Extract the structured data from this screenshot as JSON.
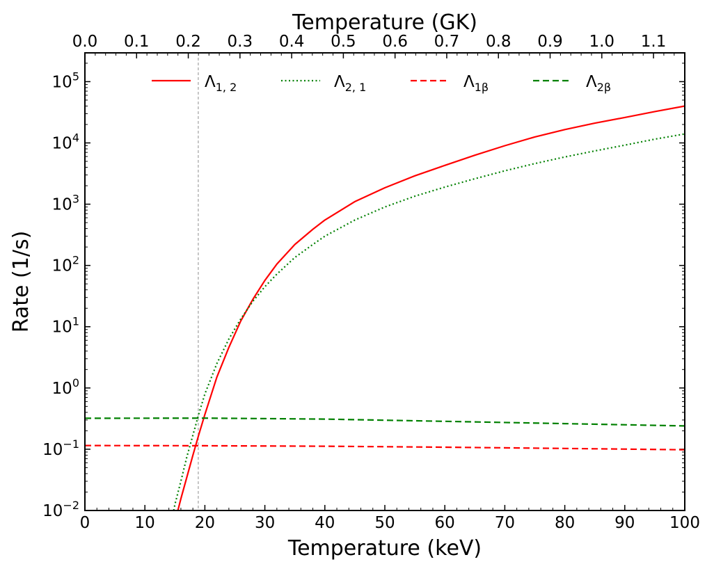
{
  "chart_data": {
    "type": "line",
    "title": "",
    "xlabel": "Temperature (keV)",
    "xlabel_top": "Temperature (GK)",
    "ylabel": "Rate (1/s)",
    "xlim": [
      0,
      100
    ],
    "ylim_log10": [
      -2,
      5.47
    ],
    "yscale": "log",
    "x_ticks": [
      0,
      10,
      20,
      30,
      40,
      50,
      60,
      70,
      80,
      90,
      100
    ],
    "x_tick_labels": [
      "0",
      "10",
      "20",
      "30",
      "40",
      "50",
      "60",
      "70",
      "80",
      "90",
      "100"
    ],
    "top_ticks_gk": [
      0.0,
      0.1,
      0.2,
      0.3,
      0.4,
      0.5,
      0.6,
      0.7,
      0.8,
      0.9,
      1.0,
      1.1
    ],
    "top_tick_labels": [
      "0.0",
      "0.1",
      "0.2",
      "0.3",
      "0.4",
      "0.5",
      "0.6",
      "0.7",
      "0.8",
      "0.9",
      "1.0",
      "1.1"
    ],
    "kev_per_gk": 86.17,
    "y_ticks_exp": [
      -2,
      -1,
      0,
      1,
      2,
      3,
      4,
      5
    ],
    "y_tick_base": "10",
    "y_tick_exps": [
      "−2",
      "−1",
      "0",
      "1",
      "2",
      "3",
      "4",
      "5"
    ],
    "vline_x": 18.9,
    "legend": {
      "placement": "top",
      "entries": [
        {
          "main": "Λ",
          "sub": "1, 2"
        },
        {
          "main": "Λ",
          "sub": "2, 1"
        },
        {
          "main": "Λ",
          "sub": "1β"
        },
        {
          "main": "Λ",
          "sub": "2β"
        }
      ]
    },
    "series": [
      {
        "name": "Λ_{1,2}",
        "color": "#ff0000",
        "style": "solid",
        "x": [
          15.5,
          16,
          17,
          18,
          19,
          20,
          22,
          24,
          26,
          28,
          30,
          32,
          35,
          38,
          40,
          45,
          50,
          55,
          60,
          65,
          70,
          75,
          80,
          85,
          90,
          95,
          100
        ],
        "y": [
          0.01,
          0.0155,
          0.035,
          0.08,
          0.175,
          0.37,
          1.5,
          4.6,
          12.5,
          28,
          57,
          105,
          220,
          390,
          550,
          1100,
          1850,
          2900,
          4300,
          6300,
          9000,
          12500,
          16500,
          21000,
          26000,
          32500,
          40000
        ]
      },
      {
        "name": "Λ_{2,1}",
        "color": "#008000",
        "style": "dotted",
        "x": [
          14.8,
          15,
          16,
          17,
          18,
          19,
          20,
          22,
          24,
          26,
          28,
          30,
          32,
          35,
          38,
          40,
          45,
          50,
          55,
          60,
          65,
          70,
          75,
          80,
          85,
          90,
          95,
          100
        ],
        "y": [
          0.01,
          0.0125,
          0.03,
          0.075,
          0.17,
          0.38,
          0.8,
          2.5,
          6.3,
          13.5,
          26,
          45,
          72,
          135,
          220,
          300,
          550,
          900,
          1350,
          1900,
          2600,
          3500,
          4600,
          5900,
          7400,
          9200,
          11500,
          14000
        ]
      },
      {
        "name": "Λ_{1β}",
        "color": "#ff0000",
        "style": "dashed",
        "x": [
          0,
          20,
          40,
          60,
          80,
          100
        ],
        "y": [
          0.115,
          0.114,
          0.112,
          0.108,
          0.103,
          0.098
        ]
      },
      {
        "name": "Λ_{2β}",
        "color": "#008000",
        "style": "dashed",
        "x": [
          0,
          20,
          40,
          60,
          80,
          100
        ],
        "y": [
          0.32,
          0.322,
          0.31,
          0.285,
          0.262,
          0.24
        ]
      }
    ]
  }
}
